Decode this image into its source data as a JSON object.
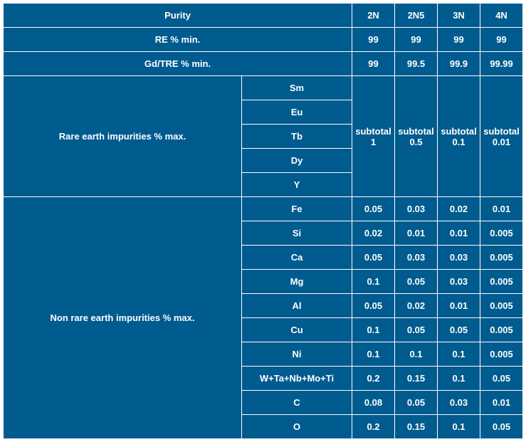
{
  "colors": {
    "cell_bg": "#005b8f",
    "cell_border": "#ffffff",
    "text": "#ffffff"
  },
  "header": {
    "purity": "Purity",
    "cols": [
      "2N",
      "2N5",
      "3N",
      "4N"
    ]
  },
  "re_row": {
    "label": "RE % min.",
    "vals": [
      "99",
      "99",
      "99",
      "99"
    ]
  },
  "gdtre_row": {
    "label": "Gd/TRE % min.",
    "vals": [
      "99",
      "99.5",
      "99.9",
      "99.99"
    ]
  },
  "rare_block": {
    "group_label": "Rare earth impurities % max.",
    "elements": [
      "Sm",
      "Eu",
      "Tb",
      "Dy",
      "Y"
    ],
    "subtotals": [
      "subtotal 1",
      "subtotal 0.5",
      "subtotal 0.1",
      "subtotal 0.01"
    ]
  },
  "nonrare_block": {
    "group_label": "Non rare earth impurities % max.",
    "rows": [
      {
        "el": "Fe",
        "vals": [
          "0.05",
          "0.03",
          "0.02",
          "0.01"
        ]
      },
      {
        "el": "Si",
        "vals": [
          "0.02",
          "0.01",
          "0.01",
          "0.005"
        ]
      },
      {
        "el": "Ca",
        "vals": [
          "0.05",
          "0.03",
          "0.03",
          "0.005"
        ]
      },
      {
        "el": "Mg",
        "vals": [
          "0.1",
          "0.05",
          "0.03",
          "0.005"
        ]
      },
      {
        "el": "Al",
        "vals": [
          "0.05",
          "0.02",
          "0.01",
          "0.005"
        ]
      },
      {
        "el": "Cu",
        "vals": [
          "0.1",
          "0.05",
          "0.05",
          "0.005"
        ]
      },
      {
        "el": "Ni",
        "vals": [
          "0.1",
          "0.1",
          "0.1",
          "0.005"
        ]
      },
      {
        "el": "W+Ta+Nb+Mo+Ti",
        "vals": [
          "0.2",
          "0.15",
          "0.1",
          "0.05"
        ]
      },
      {
        "el": "C",
        "vals": [
          "0.08",
          "0.05",
          "0.03",
          "0.01"
        ]
      },
      {
        "el": "O",
        "vals": [
          "0.2",
          "0.15",
          "0.1",
          "0.05"
        ]
      }
    ]
  }
}
